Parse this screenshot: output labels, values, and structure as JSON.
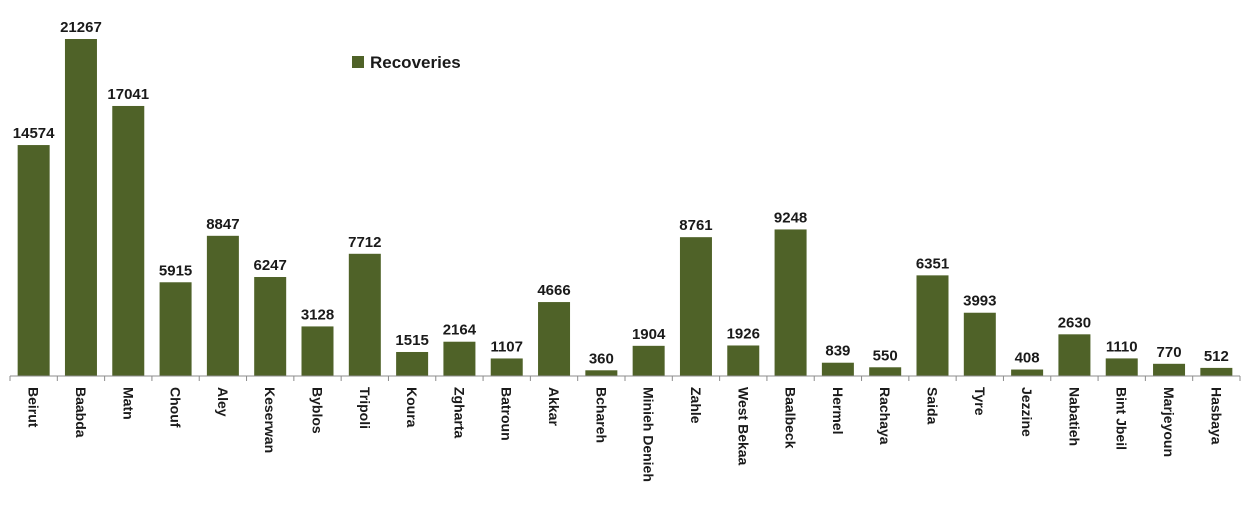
{
  "chart_data": {
    "type": "bar",
    "categories": [
      "Beirut",
      "Baabda",
      "Matn",
      "Chouf",
      "Aley",
      "Keserwan",
      "Byblos",
      "Tripoli",
      "Koura",
      "Zgharta",
      "Batroun",
      "Akkar",
      "Bchareh",
      "Minieh Denieh",
      "Zahle",
      "West Bekaa",
      "Baalbeck",
      "Hermel",
      "Rachaya",
      "Saida",
      "Tyre",
      "Jezzine",
      "Nabatieh",
      "Bint Jbeil",
      "Marjeyoun",
      "Hasbaya"
    ],
    "series": [
      {
        "name": "Recoveries",
        "color": "#4f6228",
        "values": [
          14574,
          21267,
          17041,
          5915,
          8847,
          6247,
          3128,
          7712,
          1515,
          2164,
          1107,
          4666,
          360,
          1904,
          8761,
          1926,
          9248,
          839,
          550,
          6351,
          3993,
          408,
          2630,
          1110,
          770,
          512
        ]
      }
    ],
    "ylim": [
      0,
      21267
    ],
    "legend": {
      "position": "top-center",
      "label": "Recoveries"
    },
    "grid": false,
    "data_labels": true
  }
}
